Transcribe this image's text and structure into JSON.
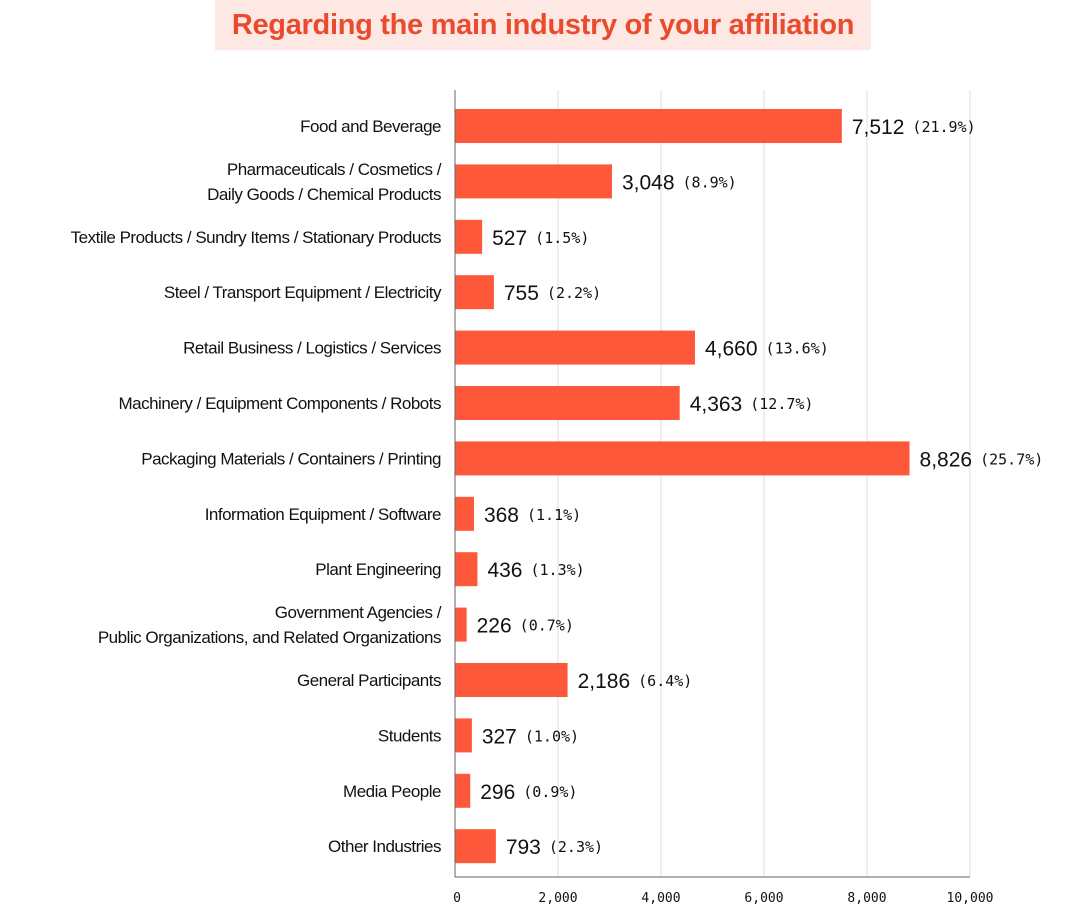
{
  "chart_data": {
    "type": "bar",
    "orientation": "horizontal",
    "title": "Regarding the main industry of your affiliation",
    "xlabel": "",
    "ylabel": "",
    "xlim": [
      0,
      10000
    ],
    "ticks": [
      0,
      2000,
      4000,
      6000,
      8000,
      10000
    ],
    "tick_labels": [
      "0",
      "2,000",
      "4,000",
      "6,000",
      "8,000",
      "10,000"
    ],
    "grid": true,
    "bar_color": "#fd583a",
    "title_color": "#ea4b2e",
    "title_bg_color": "#fde8e3",
    "categories": [
      [
        "Food and Beverage"
      ],
      [
        "Pharmaceuticals / Cosmetics /",
        "Daily Goods / Chemical Products"
      ],
      [
        "Textile Products  / Sundry Items  / Stationary Products"
      ],
      [
        "Steel  / Transport Equipment / Electricity"
      ],
      [
        "Retail Business / Logistics / Services"
      ],
      [
        "Machinery / Equipment Components /  Robots"
      ],
      [
        "Packaging Materials / Containers / Printing"
      ],
      [
        "Information Equipment / Software"
      ],
      [
        "Plant Engineering"
      ],
      [
        "Government Agencies /",
        "Public Organizations, and Related Organizations"
      ],
      [
        "General Participants"
      ],
      [
        "Students"
      ],
      [
        "Media People"
      ],
      [
        "Other Industries"
      ]
    ],
    "values": [
      7512,
      3048,
      527,
      755,
      4660,
      4363,
      8826,
      368,
      436,
      226,
      2186,
      327,
      296,
      793
    ],
    "value_labels": [
      "7,512",
      "3,048",
      "527",
      "755",
      "4,660",
      "4,363",
      "8,826",
      "368",
      "436",
      "226",
      "2,186",
      "327",
      "296",
      "793"
    ],
    "percent_labels": [
      "(21.9%)",
      "(8.9%)",
      "(1.5%)",
      "(2.2%)",
      "(13.6%)",
      "(12.7%)",
      "(25.7%)",
      "(1.1%)",
      "(1.3%)",
      "(0.7%)",
      "(6.4%)",
      "(1.0%)",
      "(0.9%)",
      "(2.3%)"
    ]
  }
}
